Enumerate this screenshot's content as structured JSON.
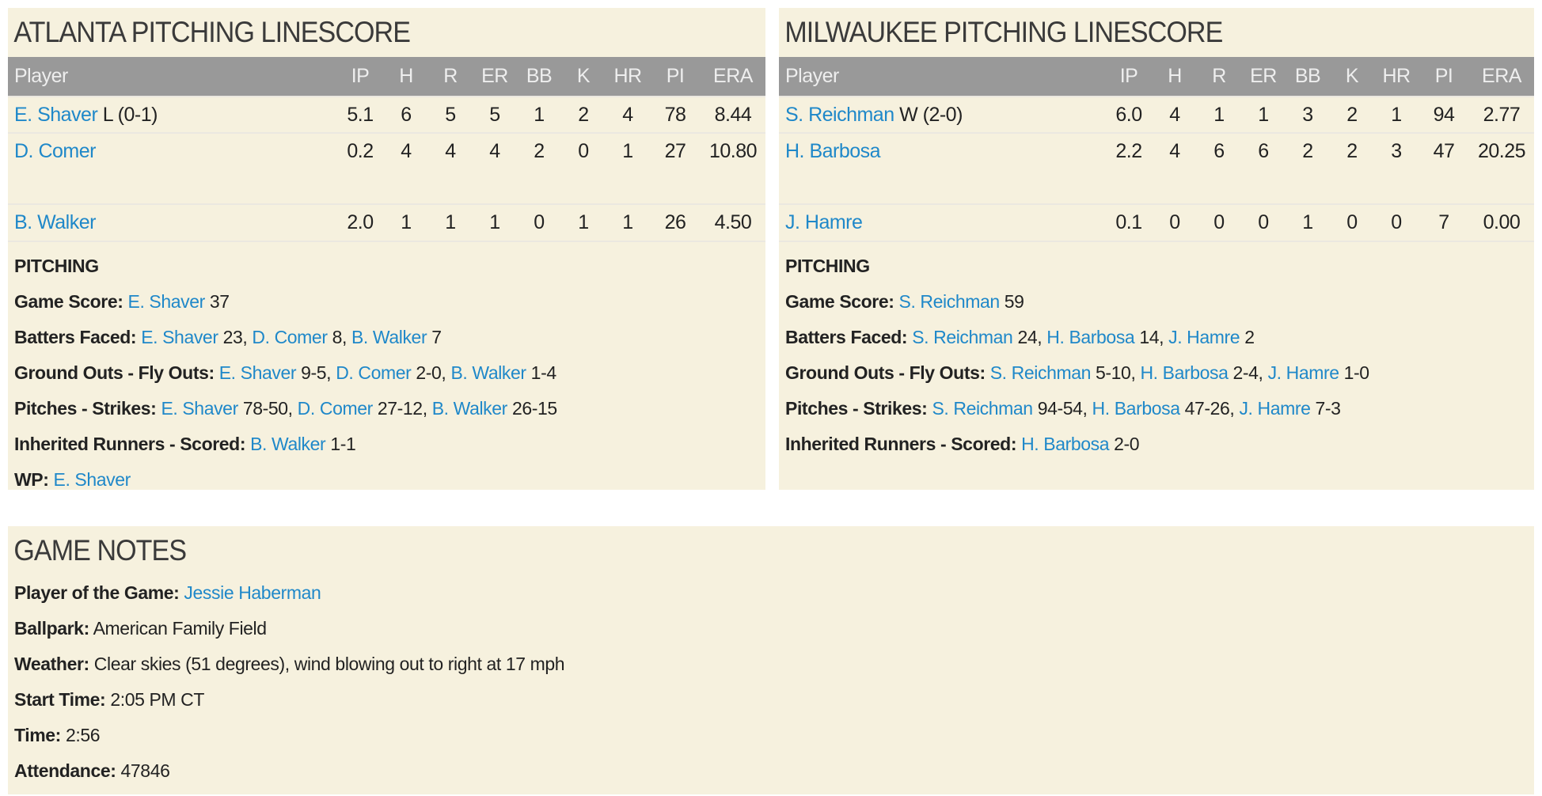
{
  "colors": {
    "panel_bg": "#f6f1de",
    "header_bg": "#999999",
    "link": "#1f88c9"
  },
  "columns": [
    "Player",
    "IP",
    "H",
    "R",
    "ER",
    "BB",
    "K",
    "HR",
    "PI",
    "ERA"
  ],
  "teams": [
    {
      "title": "ATLANTA PITCHING LINESCORE",
      "rows": [
        {
          "name": "E. Shaver",
          "decision": "L (0-1)",
          "stats": [
            "5.1",
            "6",
            "5",
            "5",
            "1",
            "2",
            "4",
            "78",
            "8.44"
          ]
        },
        {
          "name": "D. Comer",
          "decision": "",
          "stats": [
            "0.2",
            "4",
            "4",
            "4",
            "2",
            "0",
            "1",
            "27",
            "10.80"
          ]
        },
        {
          "name": "B. Walker",
          "decision": "",
          "stats": [
            "2.0",
            "1",
            "1",
            "1",
            "0",
            "1",
            "1",
            "26",
            "4.50"
          ]
        }
      ],
      "pitching_heading": "PITCHING",
      "pitching": [
        {
          "label": "Game Score:",
          "entries": [
            {
              "name": "E. Shaver",
              "value": "37"
            }
          ]
        },
        {
          "label": "Batters Faced:",
          "entries": [
            {
              "name": "E. Shaver",
              "value": "23,"
            },
            {
              "name": "D. Comer",
              "value": "8,"
            },
            {
              "name": "B. Walker",
              "value": "7"
            }
          ]
        },
        {
          "label": "Ground Outs - Fly Outs:",
          "entries": [
            {
              "name": "E. Shaver",
              "value": "9-5,"
            },
            {
              "name": "D. Comer",
              "value": "2-0,"
            },
            {
              "name": "B. Walker",
              "value": "1-4"
            }
          ]
        },
        {
          "label": "Pitches - Strikes:",
          "entries": [
            {
              "name": "E. Shaver",
              "value": "78-50,"
            },
            {
              "name": "D. Comer",
              "value": "27-12,"
            },
            {
              "name": "B. Walker",
              "value": "26-15"
            }
          ]
        },
        {
          "label": "Inherited Runners - Scored:",
          "entries": [
            {
              "name": "B. Walker",
              "value": "1-1"
            }
          ]
        },
        {
          "label": "WP:",
          "entries": [
            {
              "name": "E. Shaver",
              "value": ""
            }
          ]
        }
      ]
    },
    {
      "title": "MILWAUKEE PITCHING LINESCORE",
      "rows": [
        {
          "name": "S. Reichman",
          "decision": "W (2-0)",
          "stats": [
            "6.0",
            "4",
            "1",
            "1",
            "3",
            "2",
            "1",
            "94",
            "2.77"
          ]
        },
        {
          "name": "H. Barbosa",
          "decision": "",
          "stats": [
            "2.2",
            "4",
            "6",
            "6",
            "2",
            "2",
            "3",
            "47",
            "20.25"
          ]
        },
        {
          "name": "J. Hamre",
          "decision": "",
          "stats": [
            "0.1",
            "0",
            "0",
            "0",
            "1",
            "0",
            "0",
            "7",
            "0.00"
          ]
        }
      ],
      "pitching_heading": "PITCHING",
      "pitching": [
        {
          "label": "Game Score:",
          "entries": [
            {
              "name": "S. Reichman",
              "value": "59"
            }
          ]
        },
        {
          "label": "Batters Faced:",
          "entries": [
            {
              "name": "S. Reichman",
              "value": "24,"
            },
            {
              "name": "H. Barbosa",
              "value": "14,"
            },
            {
              "name": "J. Hamre",
              "value": "2"
            }
          ]
        },
        {
          "label": "Ground Outs - Fly Outs:",
          "entries": [
            {
              "name": "S. Reichman",
              "value": "5-10,"
            },
            {
              "name": "H. Barbosa",
              "value": "2-4,"
            },
            {
              "name": "J. Hamre",
              "value": "1-0"
            }
          ]
        },
        {
          "label": "Pitches - Strikes:",
          "entries": [
            {
              "name": "S. Reichman",
              "value": "94-54,"
            },
            {
              "name": "H. Barbosa",
              "value": "47-26,"
            },
            {
              "name": "J. Hamre",
              "value": "7-3"
            }
          ]
        },
        {
          "label": "Inherited Runners - Scored:",
          "entries": [
            {
              "name": "H. Barbosa",
              "value": "2-0"
            }
          ]
        }
      ]
    }
  ],
  "notes": {
    "title": "GAME NOTES",
    "items": [
      {
        "label": "Player of the Game:",
        "value": "Jessie Haberman",
        "link": true
      },
      {
        "label": "Ballpark:",
        "value": "American Family Field",
        "link": false
      },
      {
        "label": "Weather:",
        "value": "Clear skies (51 degrees), wind blowing out to right at 17 mph",
        "link": false
      },
      {
        "label": "Start Time:",
        "value": "2:05 PM CT",
        "link": false
      },
      {
        "label": "Time:",
        "value": "2:56",
        "link": false
      },
      {
        "label": "Attendance:",
        "value": "47846",
        "link": false
      }
    ]
  }
}
